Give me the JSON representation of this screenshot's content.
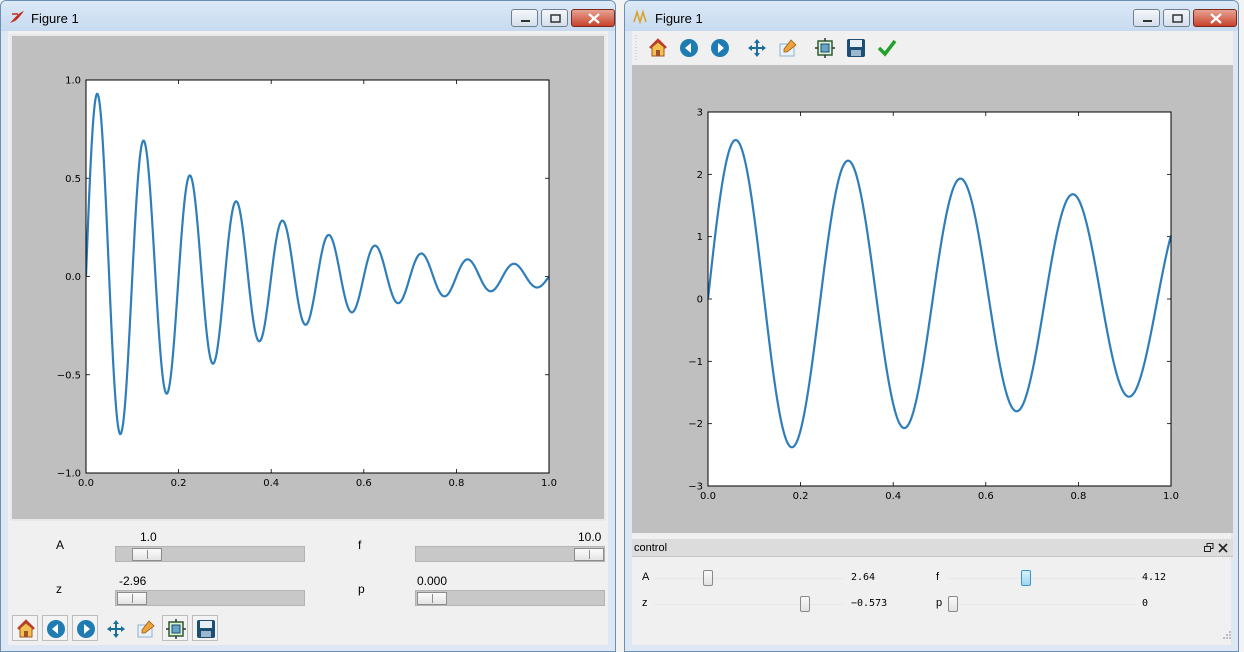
{
  "left_window": {
    "title": "Figure 1",
    "sliders": [
      {
        "label": "A",
        "value_text": "1.0",
        "value": 1.0,
        "min": 0.1,
        "max": 10.0
      },
      {
        "label": "f",
        "value_text": "10.0",
        "value": 10.0,
        "min": 0.1,
        "max": 10.0
      },
      {
        "label": "z",
        "value_text": "-2.96",
        "value": -2.96,
        "min": -3.0,
        "max": 0.0
      },
      {
        "label": "p",
        "value_text": "0.000",
        "value": 0.0,
        "min": 0.0,
        "max": 6.28
      }
    ],
    "toolbar": [
      "home-icon",
      "back-icon",
      "forward-icon",
      "pan-icon",
      "zoom-icon",
      "subplots-icon",
      "save-icon"
    ]
  },
  "right_window": {
    "title": "Figure 1",
    "toolbar": [
      "home-icon",
      "back-icon",
      "forward-icon",
      "pan-icon",
      "zoom-icon",
      "subplots-icon",
      "save-icon",
      "edit-check-icon"
    ],
    "control_panel": {
      "title": "control",
      "sliders": [
        {
          "label": "A",
          "value_text": "2.64",
          "fraction": 0.28
        },
        {
          "label": "f",
          "value_text": "4.12",
          "fraction": 0.41
        },
        {
          "label": "z",
          "value_text": "−0.573",
          "fraction": 0.8
        },
        {
          "label": "p",
          "value_text": "0",
          "fraction": 0.0
        }
      ]
    }
  },
  "colors": {
    "line": "#2e7ebb",
    "figure_bg": "#bfbfbf",
    "axes_bg": "#ffffff"
  },
  "chart_data": [
    {
      "type": "line",
      "description_function": "A*exp(z*x)*sin(2*pi*f*x+p)",
      "params": {
        "A": 1.0,
        "f": 10.0,
        "z": -2.96,
        "p": 0.0
      },
      "x_range": [
        0.0,
        1.0
      ],
      "xlim": [
        0.0,
        1.0
      ],
      "ylim": [
        -1.0,
        1.0
      ],
      "xticks": [
        "0.0",
        "0.2",
        "0.4",
        "0.6",
        "0.8",
        "1.0"
      ],
      "yticks": [
        "1.0",
        "0.5",
        "0.0",
        "−0.5",
        "−1.0"
      ],
      "ytick_values": [
        1.0,
        0.5,
        0.0,
        -0.5,
        -1.0
      ],
      "xtick_values": [
        0.0,
        0.2,
        0.4,
        0.6,
        0.8,
        1.0
      ]
    },
    {
      "type": "line",
      "description_function": "A*exp(z*x)*sin(2*pi*f*x+p)",
      "params": {
        "A": 2.64,
        "f": 4.12,
        "z": -0.573,
        "p": 0.0
      },
      "x_range": [
        0.0,
        1.0
      ],
      "xlim": [
        0.0,
        1.0
      ],
      "ylim": [
        -3.0,
        3.0
      ],
      "xticks": [
        "0.0",
        "0.2",
        "0.4",
        "0.6",
        "0.8",
        "1.0"
      ],
      "yticks": [
        "3",
        "2",
        "1",
        "0",
        "−1",
        "−2",
        "−3"
      ],
      "ytick_values": [
        3,
        2,
        1,
        0,
        -1,
        -2,
        -3
      ],
      "xtick_values": [
        0.0,
        0.2,
        0.4,
        0.6,
        0.8,
        1.0
      ]
    }
  ]
}
